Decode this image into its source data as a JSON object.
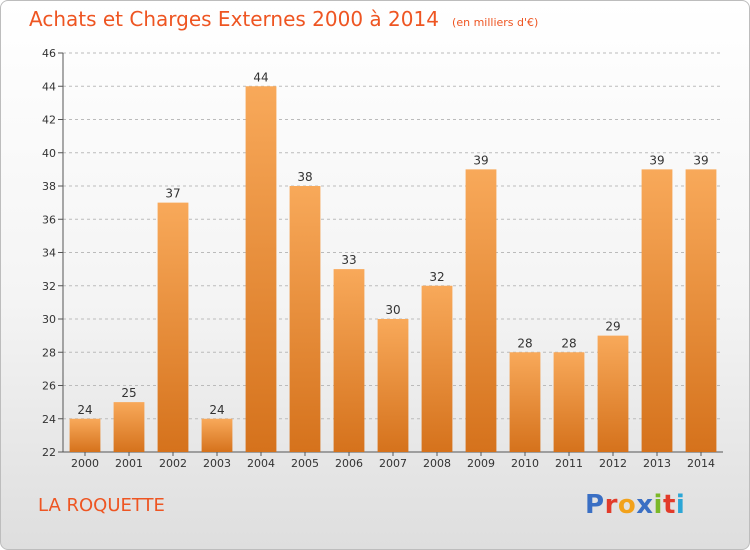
{
  "header": {
    "title": "Achats et Charges Externes 2000 à 2014",
    "unit": "(en milliers d'€)"
  },
  "footer": {
    "commune": "LA ROQUETTE",
    "logo_text": "Proxiti",
    "logo_colors": [
      "#3a6fc4",
      "#e23b2a",
      "#f2a21b",
      "#3a6fc4",
      "#7bb828",
      "#e23b2a",
      "#2ba6d6"
    ]
  },
  "colors": {
    "accent": "#ee5522",
    "bar_light": "#f8a95a",
    "bar_dark": "#d5721c",
    "grid": "#bbbbbb"
  },
  "chart_data": {
    "type": "bar",
    "title": "Achats et Charges Externes 2000 à 2014",
    "xlabel": "",
    "ylabel": "",
    "categories": [
      "2000",
      "2001",
      "2002",
      "2003",
      "2004",
      "2005",
      "2006",
      "2007",
      "2008",
      "2009",
      "2010",
      "2011",
      "2012",
      "2013",
      "2014"
    ],
    "values": [
      24,
      25,
      37,
      24,
      44,
      38,
      33,
      30,
      32,
      39,
      28,
      28,
      29,
      39,
      39
    ],
    "ylim": [
      22,
      46
    ],
    "yticks": [
      22,
      24,
      26,
      28,
      30,
      32,
      34,
      36,
      38,
      40,
      42,
      44,
      46
    ],
    "grid": "horizontal dashed",
    "data_labels": true
  }
}
